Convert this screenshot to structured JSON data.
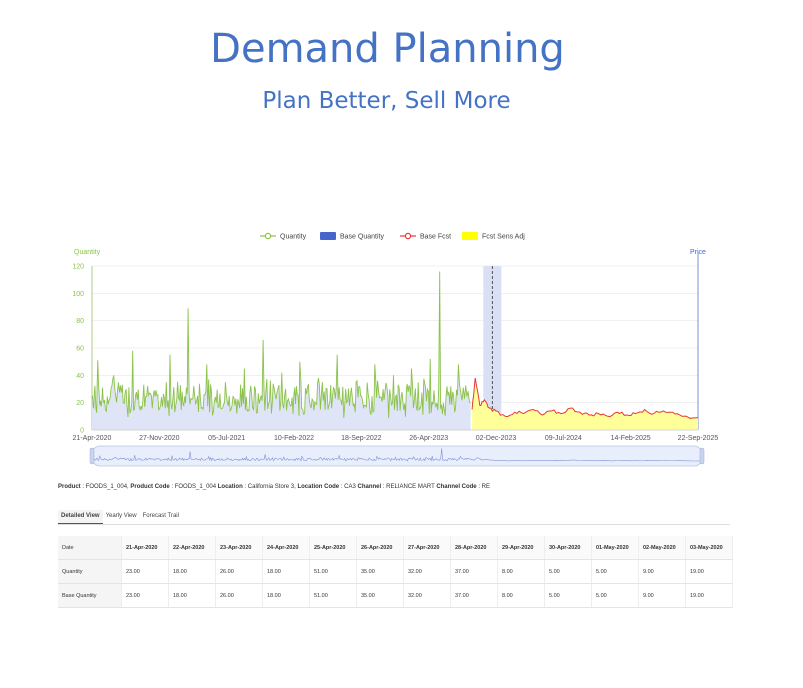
{
  "header": {
    "title": "Demand Planning",
    "subtitle": "Plan Better, Sell More"
  },
  "colors": {
    "title": "#4472c4",
    "quantity": "#8bc34a",
    "base_quantity": "#4466cc",
    "base_fcst": "#e53935",
    "fcst_sens_adj": "#ffff00"
  },
  "chart_data": {
    "type": "line",
    "legend": [
      "Quantity",
      "Base Quantity",
      "Base Fcst",
      "Fcst Sens Adj"
    ],
    "legend_position": "top",
    "ylabel_left": "Quantity",
    "ylabel_right": "Price",
    "ylim": [
      0,
      120
    ],
    "yticks": [
      "120",
      "100",
      "80",
      "60",
      "40",
      "20",
      "0"
    ],
    "xticks": [
      "21-Apr-2020",
      "27-Nov-2020",
      "05-Jul-2021",
      "10-Feb-2022",
      "18-Sep-2022",
      "26-Apr-2023",
      "02-Dec-2023",
      "09-Jul-2024",
      "14-Feb-2025",
      "22-Sep-2025"
    ],
    "grid": true,
    "x_range": [
      "2020-04-21",
      "2025-09-22"
    ],
    "forecast_start": "2023-09-15",
    "current_marker": "2023-11-20",
    "history_series": {
      "name": "Quantity",
      "points": [
        [
          "2020-04-21",
          23
        ],
        [
          "2020-05-10",
          51
        ],
        [
          "2020-06-01",
          22
        ],
        [
          "2020-07-01",
          40
        ],
        [
          "2020-08-01",
          20
        ],
        [
          "2020-09-01",
          58
        ],
        [
          "2020-10-01",
          15
        ],
        [
          "2020-11-01",
          25
        ],
        [
          "2020-12-01",
          18
        ],
        [
          "2021-01-01",
          55
        ],
        [
          "2021-02-01",
          22
        ],
        [
          "2021-03-01",
          89
        ],
        [
          "2021-04-01",
          25
        ],
        [
          "2021-05-01",
          48
        ],
        [
          "2021-06-01",
          20
        ],
        [
          "2021-07-01",
          35
        ],
        [
          "2021-08-01",
          18
        ],
        [
          "2021-09-01",
          45
        ],
        [
          "2021-10-01",
          15
        ],
        [
          "2021-11-01",
          66
        ],
        [
          "2021-12-01",
          20
        ],
        [
          "2022-01-01",
          42
        ],
        [
          "2022-02-01",
          18
        ],
        [
          "2022-03-01",
          50
        ],
        [
          "2022-04-01",
          22
        ],
        [
          "2022-05-01",
          38
        ],
        [
          "2022-06-01",
          15
        ],
        [
          "2022-07-01",
          55
        ],
        [
          "2022-08-01",
          20
        ],
        [
          "2022-09-01",
          35
        ],
        [
          "2022-10-01",
          18
        ],
        [
          "2022-11-01",
          48
        ],
        [
          "2022-12-01",
          22
        ],
        [
          "2023-01-01",
          40
        ],
        [
          "2023-02-01",
          20
        ],
        [
          "2023-03-01",
          45
        ],
        [
          "2023-04-01",
          18
        ],
        [
          "2023-05-01",
          52
        ],
        [
          "2023-06-01",
          116
        ],
        [
          "2023-07-01",
          28
        ],
        [
          "2023-08-01",
          48
        ],
        [
          "2023-09-10",
          20
        ]
      ]
    },
    "forecast_series": {
      "name": "Base Fcst",
      "points": [
        [
          "2023-09-15",
          15
        ],
        [
          "2023-09-25",
          38
        ],
        [
          "2023-10-10",
          18
        ],
        [
          "2023-10-25",
          22
        ],
        [
          "2023-11-10",
          16
        ],
        [
          "2023-12-01",
          14
        ],
        [
          "2024-01-01",
          10
        ],
        [
          "2024-02-01",
          13
        ],
        [
          "2024-03-01",
          12
        ],
        [
          "2024-04-01",
          15
        ],
        [
          "2024-05-01",
          11
        ],
        [
          "2024-06-01",
          14
        ],
        [
          "2024-07-01",
          12
        ],
        [
          "2024-08-01",
          16
        ],
        [
          "2024-09-01",
          13
        ],
        [
          "2024-10-01",
          11
        ],
        [
          "2024-11-01",
          12
        ],
        [
          "2024-12-01",
          10
        ],
        [
          "2025-01-01",
          13
        ],
        [
          "2025-02-01",
          11
        ],
        [
          "2025-03-01",
          12
        ],
        [
          "2025-04-01",
          15
        ],
        [
          "2025-05-01",
          12
        ],
        [
          "2025-06-01",
          14
        ],
        [
          "2025-07-01",
          13
        ],
        [
          "2025-08-01",
          10
        ],
        [
          "2025-09-22",
          9
        ]
      ]
    }
  },
  "product_info": {
    "product_label": "Product",
    "product_value": ": FOODS_1_004,",
    "product_code_label": "Product Code",
    "product_code_value": ": FOODS_1_004",
    "location_label": "Location",
    "location_value": ": California Store 3,",
    "location_code_label": "Location Code",
    "location_code_value": ": CA3",
    "channel_label": "Channel",
    "channel_value": ": RELIANCE MART",
    "channel_code_label": "Channel Code",
    "channel_code_value": ": RE"
  },
  "tabs": [
    "Detailed View",
    "Yearly View",
    "Forecast Trail"
  ],
  "table": {
    "date_header": "Date",
    "dates": [
      "21-Apr-2020",
      "22-Apr-2020",
      "23-Apr-2020",
      "24-Apr-2020",
      "25-Apr-2020",
      "26-Apr-2020",
      "27-Apr-2020",
      "28-Apr-2020",
      "29-Apr-2020",
      "30-Apr-2020",
      "01-May-2020",
      "02-May-2020",
      "03-May-2020"
    ],
    "rows": [
      {
        "label": "Quantity",
        "values": [
          "23.00",
          "18.00",
          "26.00",
          "18.00",
          "51.00",
          "35.00",
          "32.00",
          "37.00",
          "8.00",
          "5.00",
          "5.00",
          "9.00",
          "19.00"
        ]
      },
      {
        "label": "Base Quantity",
        "values": [
          "23.00",
          "18.00",
          "26.00",
          "18.00",
          "51.00",
          "35.00",
          "32.00",
          "37.00",
          "8.00",
          "5.00",
          "5.00",
          "9.00",
          "19.00"
        ]
      }
    ]
  }
}
